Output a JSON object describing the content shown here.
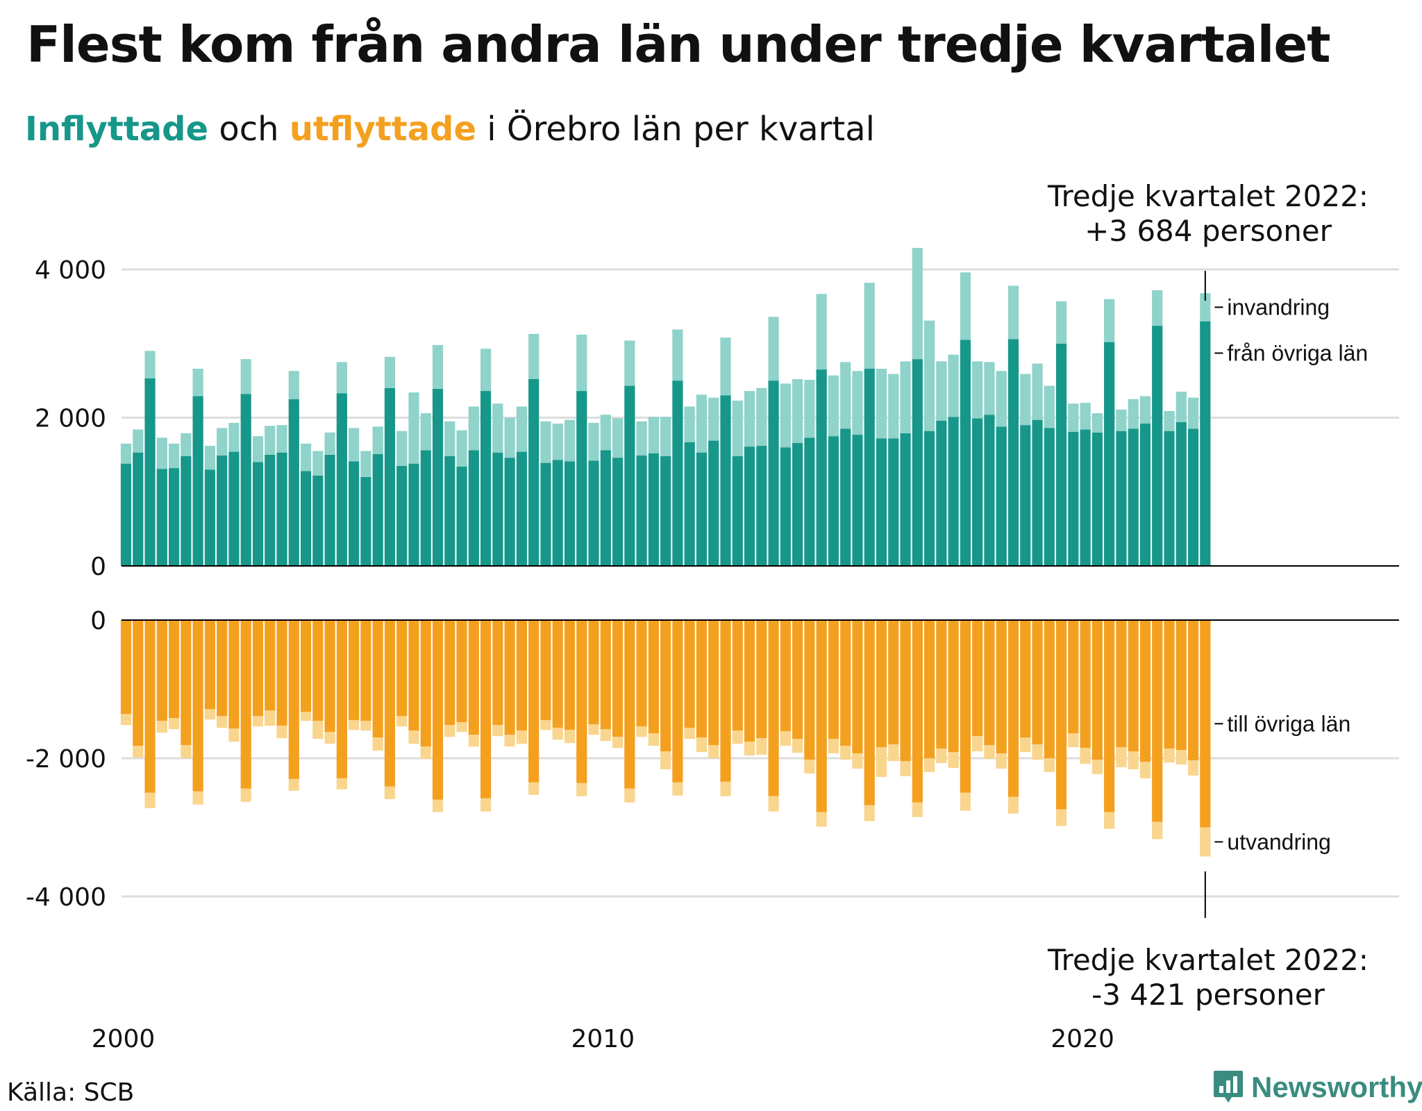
{
  "header": {
    "title": "Flest kom från andra län under tredje kvartalet",
    "subtitle_in": "Inflyttade",
    "subtitle_mid": "och",
    "subtitle_out": "utflyttade",
    "subtitle_rest": "i Örebro län per kvartal"
  },
  "callouts": {
    "top_line1": "Tredje kvartalet 2022:",
    "top_line2": "+3 684 personer",
    "bottom_line1": "Tredje kvartalet 2022:",
    "bottom_line2": "-3 421 personer"
  },
  "footer": {
    "source": "Källa: SCB",
    "brand": "Newsworthy"
  },
  "colors": {
    "in_domestic": "#16978a",
    "in_immigration": "#8fd3ca",
    "out_domestic": "#f4a01f",
    "out_emigration": "#f9d58e",
    "grid": "#dddddd",
    "axis": "#000000"
  },
  "chart_data": {
    "type": "bar",
    "stacked": true,
    "x_labels": [
      "2000",
      "2010",
      "2020"
    ],
    "x_label_quarters": [
      0,
      40,
      80
    ],
    "panels": [
      {
        "name": "inflyttade",
        "y_ticks": [
          0,
          2000,
          4000
        ],
        "y_tick_labels": [
          "0",
          "2 000",
          "4 000"
        ],
        "ylim": [
          0,
          4300
        ],
        "series": [
          {
            "name": "från övriga län",
            "values": [
              1380,
              1530,
              2530,
              1310,
              1320,
              1480,
              2290,
              1300,
              1490,
              1540,
              2320,
              1400,
              1500,
              1530,
              2250,
              1280,
              1220,
              1500,
              2330,
              1410,
              1200,
              1510,
              2400,
              1350,
              1380,
              1560,
              2390,
              1480,
              1340,
              1560,
              2360,
              1530,
              1460,
              1540,
              2520,
              1390,
              1430,
              1410,
              2360,
              1420,
              1560,
              1460,
              2430,
              1490,
              1520,
              1480,
              2500,
              1670,
              1530,
              1690,
              2300,
              1480,
              1610,
              1620,
              2500,
              1600,
              1660,
              1730,
              2650,
              1750,
              1850,
              1770,
              2660,
              1720,
              1720,
              1790,
              2790,
              1820,
              1960,
              2010,
              3050,
              1990,
              2040,
              1880,
              3060,
              1900,
              1970,
              1860,
              3000,
              1810,
              1840,
              1800,
              3020,
              1820,
              1850,
              1920,
              3240,
              1820,
              1940,
              1850,
              3300
            ]
          },
          {
            "name": "invandring",
            "values": [
              270,
              310,
              370,
              420,
              330,
              310,
              370,
              320,
              370,
              390,
              470,
              350,
              390,
              370,
              380,
              370,
              330,
              300,
              420,
              450,
              350,
              370,
              420,
              470,
              960,
              500,
              590,
              470,
              490,
              590,
              570,
              660,
              540,
              610,
              610,
              560,
              490,
              560,
              760,
              510,
              480,
              530,
              610,
              460,
              490,
              530,
              690,
              480,
              780,
              580,
              780,
              750,
              750,
              780,
              860,
              860,
              860,
              780,
              1020,
              820,
              900,
              860,
              1160,
              940,
              870,
              970,
              1500,
              1490,
              800,
              840,
              910,
              770,
              710,
              750,
              720,
              690,
              760,
              570,
              570,
              380,
              360,
              260,
              580,
              290,
              400,
              370,
              480,
              270,
              410,
              420,
              380
            ]
          }
        ],
        "side_labels": [
          "invandring",
          "från övriga län"
        ]
      },
      {
        "name": "utflyttade",
        "y_ticks": [
          0,
          -2000,
          -4000
        ],
        "y_tick_labels": [
          "0",
          "-2 000",
          "-4 000"
        ],
        "ylim": [
          -4300,
          0
        ],
        "series": [
          {
            "name": "till övriga län",
            "values": [
              -1360,
              -1820,
              -2500,
              -1460,
              -1420,
              -1810,
              -2480,
              -1290,
              -1390,
              -1570,
              -2440,
              -1390,
              -1310,
              -1530,
              -2300,
              -1330,
              -1460,
              -1620,
              -2290,
              -1450,
              -1460,
              -1700,
              -2410,
              -1390,
              -1600,
              -1830,
              -2600,
              -1520,
              -1480,
              -1660,
              -2580,
              -1520,
              -1660,
              -1600,
              -2350,
              -1450,
              -1560,
              -1590,
              -2360,
              -1510,
              -1580,
              -1690,
              -2440,
              -1540,
              -1640,
              -1900,
              -2350,
              -1560,
              -1700,
              -1810,
              -2340,
              -1600,
              -1760,
              -1710,
              -2550,
              -1610,
              -1720,
              -2020,
              -2780,
              -1720,
              -1820,
              -1930,
              -2680,
              -1840,
              -1800,
              -2040,
              -2640,
              -2000,
              -1860,
              -1910,
              -2500,
              -1680,
              -1810,
              -1930,
              -2560,
              -1700,
              -1800,
              -2000,
              -2740,
              -1640,
              -1850,
              -2020,
              -2780,
              -1840,
              -1900,
              -2050,
              -2920,
              -1860,
              -1880,
              -2030,
              -3000
            ]
          },
          {
            "name": "utvandring",
            "values": [
              -160,
              -170,
              -220,
              -170,
              -160,
              -190,
              -190,
              -150,
              -170,
              -190,
              -190,
              -150,
              -220,
              -180,
              -170,
              -130,
              -260,
              -170,
              -160,
              -140,
              -140,
              -190,
              -180,
              -150,
              -190,
              -180,
              -180,
              -170,
              -140,
              -170,
              -190,
              -160,
              -170,
              -190,
              -180,
              -140,
              -170,
              -190,
              -190,
              -150,
              -170,
              -160,
              -200,
              -150,
              -180,
              -260,
              -190,
              -160,
              -210,
              -190,
              -210,
              -190,
              -200,
              -240,
              -220,
              -210,
              -200,
              -200,
              -210,
              -210,
              -200,
              -220,
              -230,
              -430,
              -240,
              -220,
              -210,
              -200,
              -210,
              -230,
              -260,
              -220,
              -200,
              -220,
              -240,
              -210,
              -220,
              -200,
              -240,
              -200,
              -230,
              -210,
              -240,
              -290,
              -260,
              -240,
              -250,
              -200,
              -210,
              -220,
              -421
            ]
          }
        ],
        "side_labels": [
          "till övriga län",
          "utvandring"
        ]
      }
    ]
  }
}
